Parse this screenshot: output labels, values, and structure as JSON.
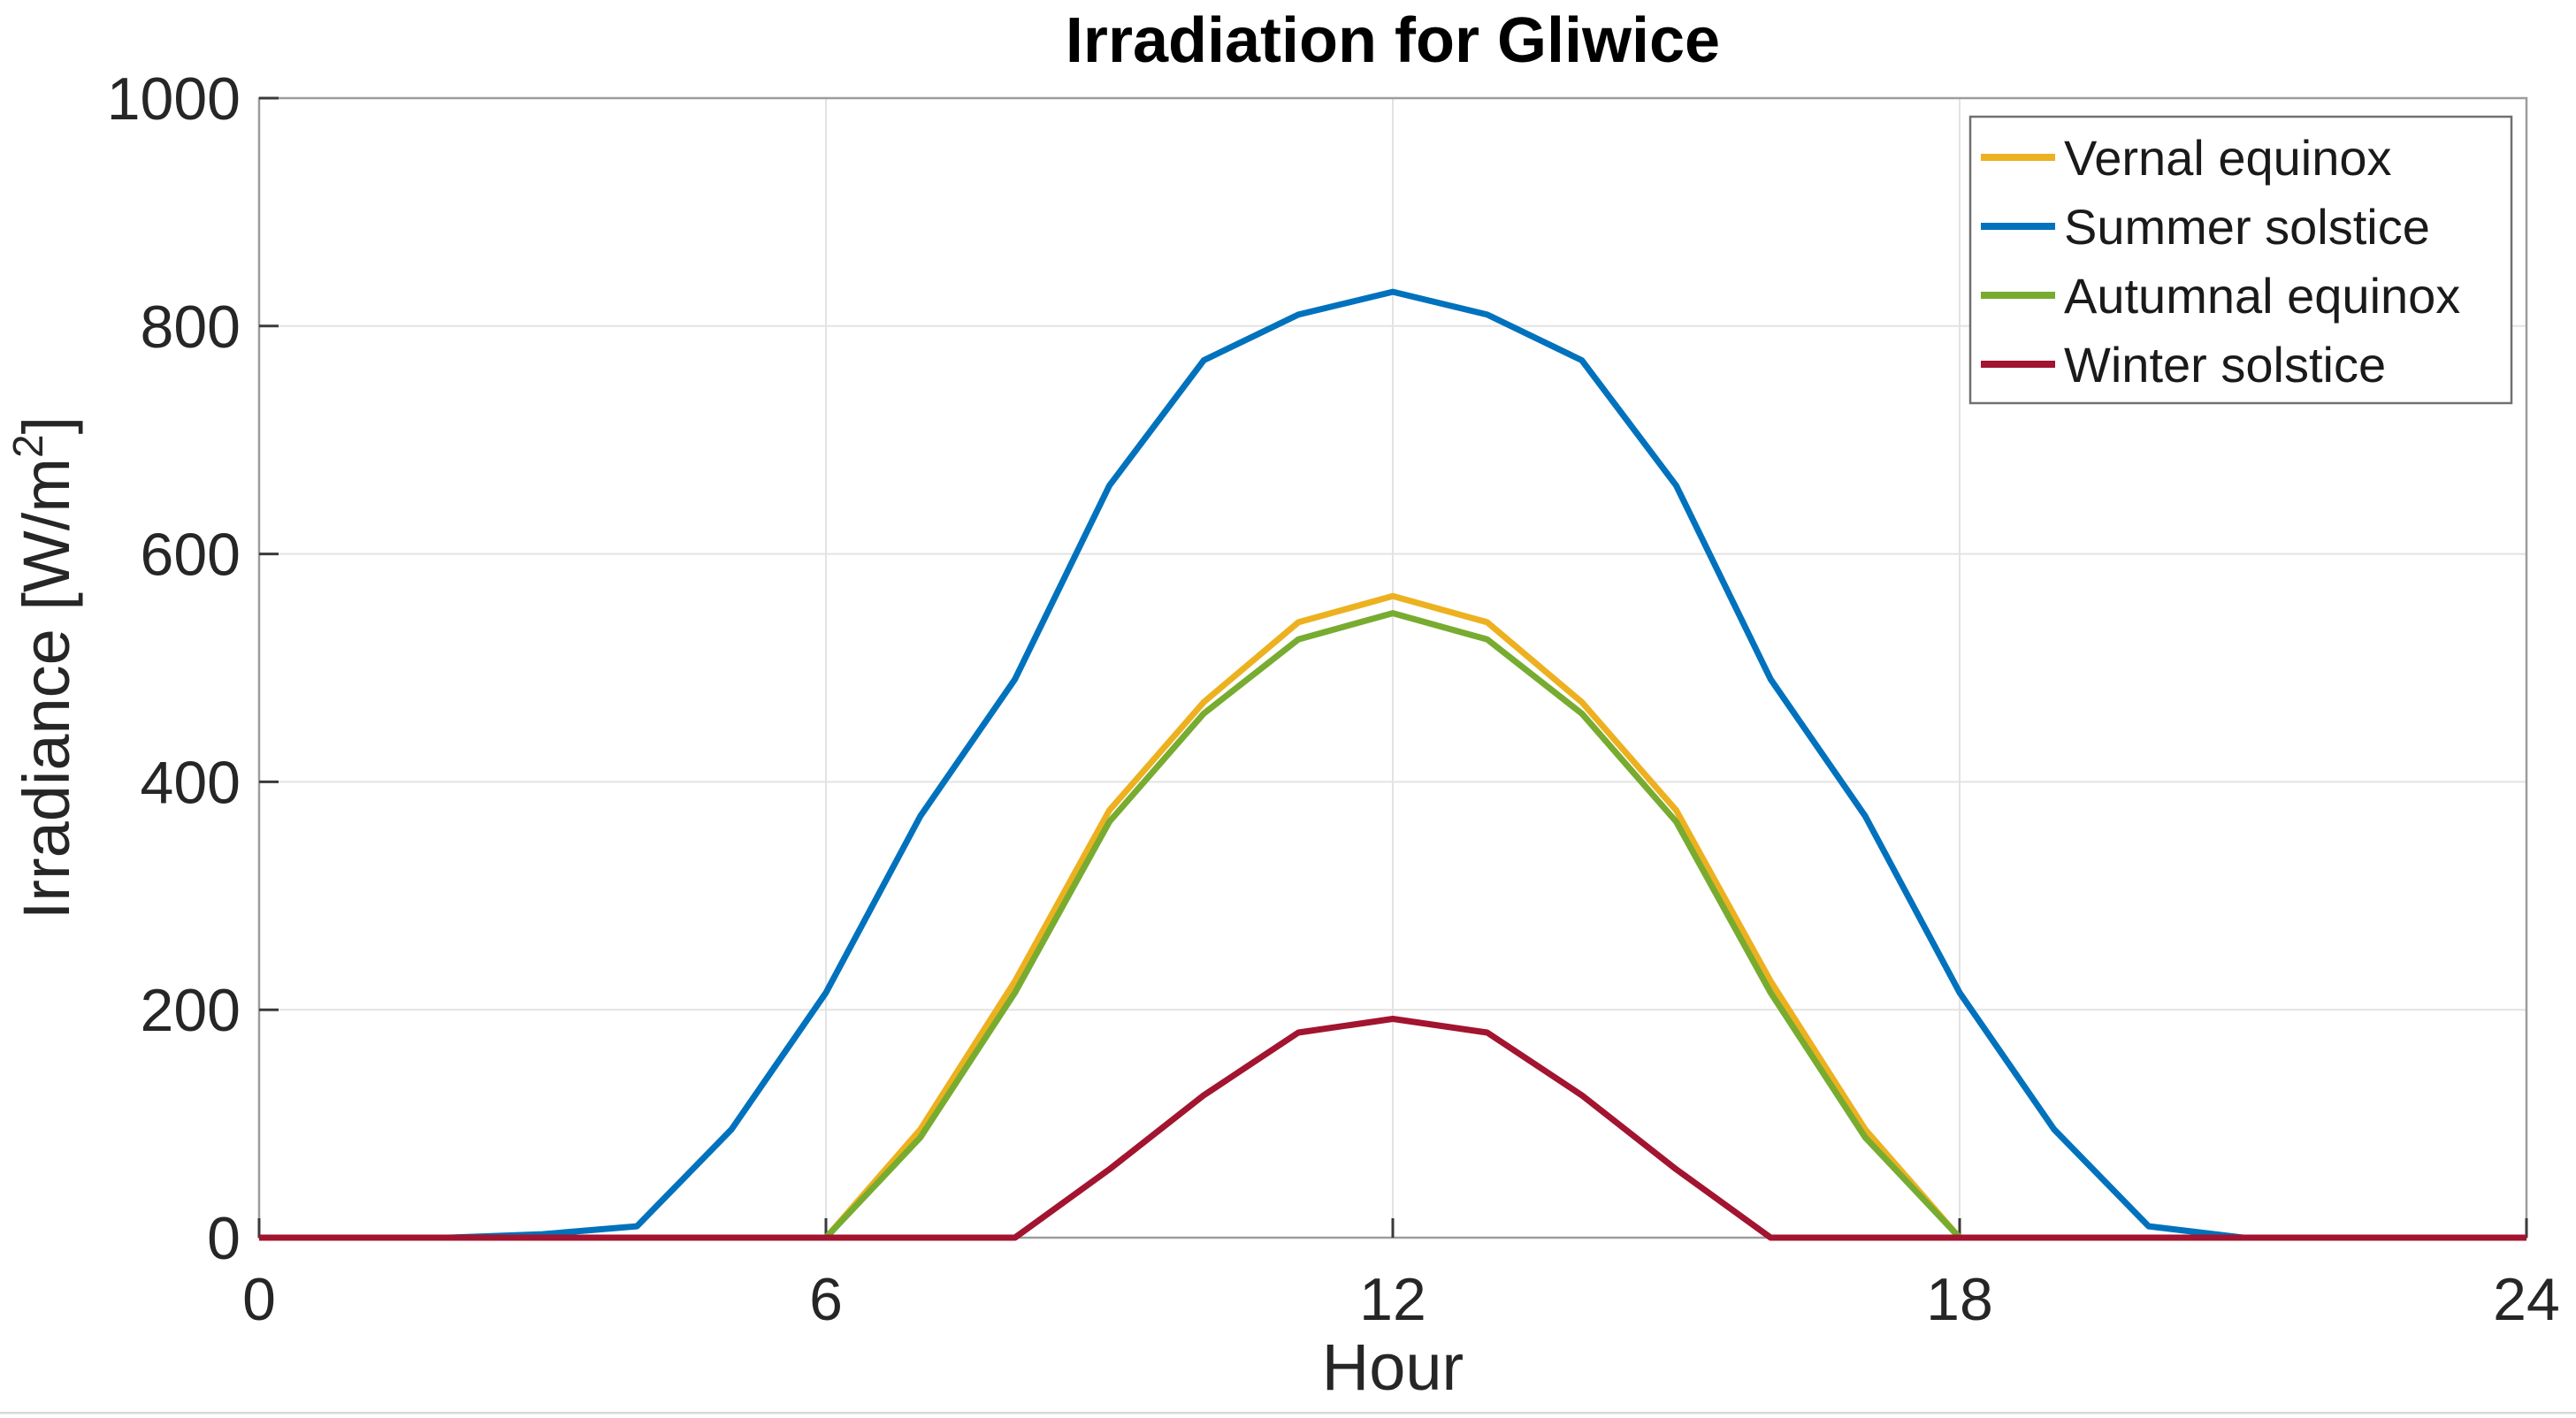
{
  "chart_data": {
    "type": "line",
    "title": "Irradiation for Gliwice",
    "xlabel": "Hour",
    "ylabel": {
      "pre": "Irradiance [W/m",
      "sup": "2",
      "post": "]"
    },
    "xlim": [
      0,
      24
    ],
    "ylim": [
      0,
      1000
    ],
    "x_ticks": [
      0,
      6,
      12,
      18,
      24
    ],
    "y_ticks": [
      0,
      200,
      400,
      600,
      800,
      1000
    ],
    "grid": true,
    "legend_position": "top-right",
    "x_hours": [
      0,
      1,
      2,
      3,
      4,
      5,
      6,
      7,
      8,
      9,
      10,
      11,
      12,
      13,
      14,
      15,
      16,
      17,
      18,
      19,
      20,
      21,
      22,
      23,
      24
    ],
    "series": [
      {
        "name": "Vernal equinox",
        "color": "#EDB120",
        "values": [
          0,
          0,
          0,
          0,
          0,
          0,
          0,
          95,
          225,
          375,
          470,
          540,
          563,
          540,
          470,
          375,
          225,
          95,
          0,
          0,
          0,
          0,
          0,
          0,
          0
        ]
      },
      {
        "name": "Summer solstice",
        "color": "#0072BD",
        "values": [
          0,
          0,
          0,
          3,
          10,
          95,
          215,
          370,
          490,
          660,
          770,
          810,
          830,
          810,
          770,
          660,
          490,
          370,
          215,
          95,
          10,
          0,
          0,
          0,
          0
        ]
      },
      {
        "name": "Autumnal equinox",
        "color": "#77AC30",
        "values": [
          0,
          0,
          0,
          0,
          0,
          0,
          0,
          88,
          215,
          365,
          460,
          525,
          548,
          525,
          460,
          365,
          215,
          88,
          0,
          0,
          0,
          0,
          0,
          0,
          0
        ]
      },
      {
        "name": "Winter solstice",
        "color": "#A2142F",
        "values": [
          0,
          0,
          0,
          0,
          0,
          0,
          0,
          0,
          0,
          60,
          125,
          180,
          192,
          180,
          125,
          60,
          0,
          0,
          0,
          0,
          0,
          0,
          0,
          0,
          0
        ]
      }
    ]
  },
  "style": {
    "background": "#ffffff",
    "frame_color": "#9c9c9c",
    "grid_color": "#e3e3e3",
    "tick_color": "#3a3a3a",
    "label_color": "#262626",
    "title_color": "#000000",
    "legend_border_color": "#707070",
    "page_edge_color": "#d8d8d8"
  }
}
